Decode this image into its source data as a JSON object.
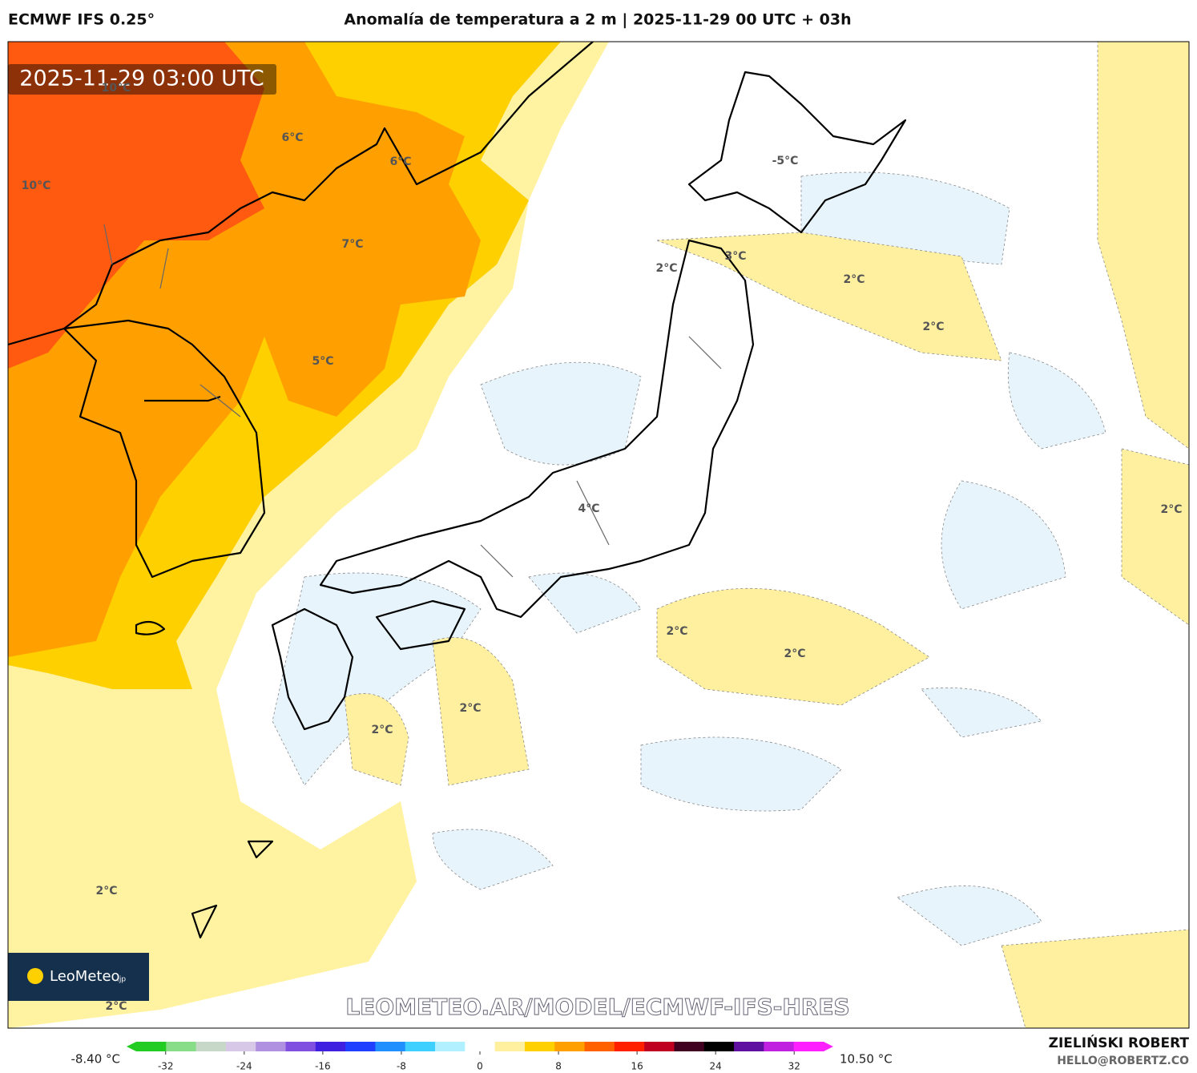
{
  "header": {
    "model": "ECMWF IFS 0.25°",
    "title": "Anomalía de temperatura a 2 m | 2025-11-29 00 UTC + 03h"
  },
  "map": {
    "timestamp": "2025-11-29 03:00 UTC",
    "contour_labels": [
      "10°C",
      "10°C",
      "6°C",
      "6°C",
      "7°C",
      "5°C",
      "-5°C",
      "2°C",
      "3°C",
      "2°C",
      "2°C",
      "4°C",
      "2°C",
      "2°C",
      "2°C",
      "2°C",
      "2°C",
      "2°C",
      "2°C"
    ],
    "watermark": "LEOMETEO.AR/MODEL/ECMWF-IFS-HRES",
    "logo": {
      "brand": "LeoMeteo",
      "suffix": ".jp"
    }
  },
  "colorbar": {
    "min_label": "-8.40 °C",
    "max_label": "10.50 °C",
    "range": [
      -35,
      35
    ],
    "ticks": [
      -32,
      -24,
      -16,
      -8,
      0,
      8,
      16,
      24,
      32
    ],
    "colors": [
      "#22cc22",
      "#88dd88",
      "#c8d8c8",
      "#d8c8e8",
      "#b090e0",
      "#8050e0",
      "#4020e0",
      "#2040ff",
      "#2090ff",
      "#40d0ff",
      "#b0f0ff",
      "#ffffff",
      "#fff0a0",
      "#ffd000",
      "#ffa000",
      "#ff6000",
      "#ff2000",
      "#c00020",
      "#400020",
      "#000000",
      "#6010a0",
      "#c020e0",
      "#ff20ff"
    ]
  },
  "footer": {
    "author": "ZIELIŃSKI ROBERT",
    "email": "HELLO@ROBERTZ.CO"
  }
}
